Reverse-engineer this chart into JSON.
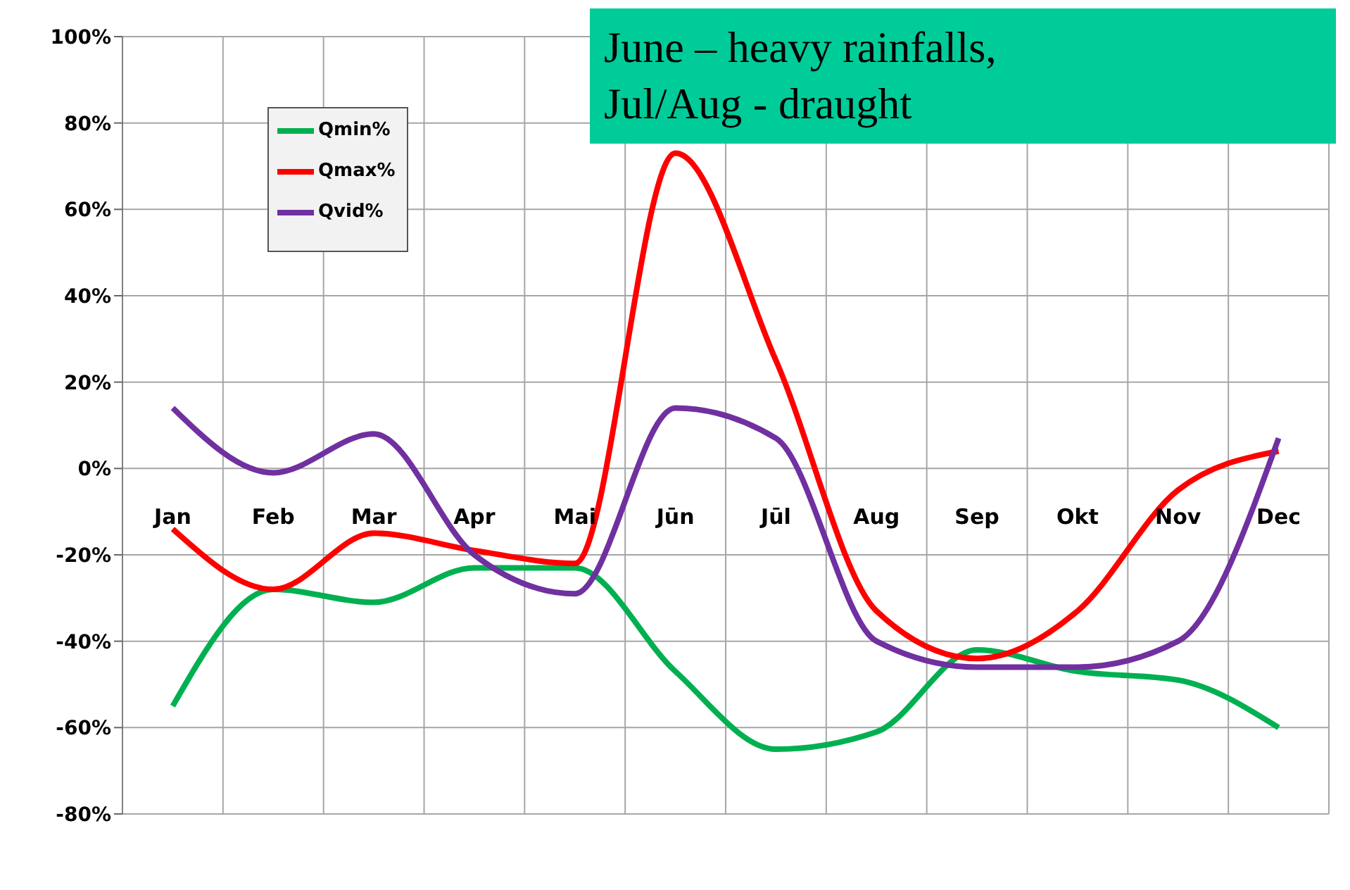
{
  "chart_data": {
    "type": "line",
    "categories": [
      "Jan",
      "Feb",
      "Mar",
      "Apr",
      "Mai",
      "Jūn",
      "Jūl",
      "Aug",
      "Sep",
      "Okt",
      "Nov",
      "Dec"
    ],
    "series": [
      {
        "name": "Qmin%",
        "color": "#00b050",
        "values": [
          -55,
          -28,
          -31,
          -23,
          -23,
          -47,
          -65,
          -61,
          -42,
          -47,
          -49,
          -60
        ]
      },
      {
        "name": "Qmax%",
        "color": "#ff0000",
        "values": [
          -14,
          -28,
          -15,
          -19,
          -22,
          73,
          25,
          -33,
          -44,
          -33,
          -5,
          4
        ]
      },
      {
        "name": "Qvid%",
        "color": "#7030a0",
        "values": [
          14,
          -1,
          8,
          -20,
          -29,
          14,
          7,
          -40,
          -46,
          -46,
          -40,
          7
        ]
      }
    ],
    "ylim": [
      -80,
      100
    ],
    "yticks": [
      {
        "value": -80,
        "label": "-80%"
      },
      {
        "value": -60,
        "label": "-60%"
      },
      {
        "value": -40,
        "label": "-40%"
      },
      {
        "value": -20,
        "label": "-20%"
      },
      {
        "value": 0,
        "label": "0%"
      },
      {
        "value": 20,
        "label": "20%"
      },
      {
        "value": 40,
        "label": "40%"
      },
      {
        "value": 60,
        "label": "60%"
      },
      {
        "value": 80,
        "label": "80%"
      },
      {
        "value": 100,
        "label": "100%"
      }
    ],
    "grid": true,
    "legend": "top left",
    "marker": "none",
    "line_style": "solid",
    "annotations": [
      "June – heavy rainfalls,\nJul/Aug - draught"
    ]
  }
}
